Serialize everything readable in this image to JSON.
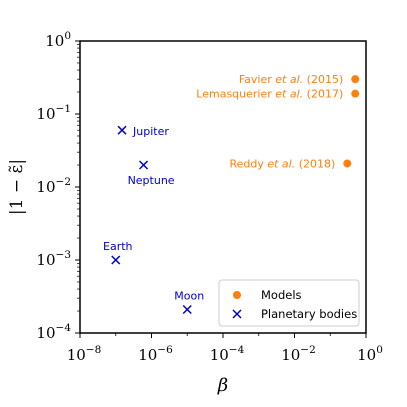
{
  "chart_data": {
    "type": "scatter",
    "xlabel": "β",
    "ylabel": "|1 − ε̃|",
    "xscale": "log",
    "yscale": "log",
    "xlim": [
      1e-08,
      1
    ],
    "ylim": [
      0.0001,
      1
    ],
    "grid": false,
    "legend_position": "bottom-right",
    "x_ticks": [
      {
        "value": 1e-08,
        "base": "10",
        "exp": "−8"
      },
      {
        "value": 1e-06,
        "base": "10",
        "exp": "−6"
      },
      {
        "value": 0.0001,
        "base": "10",
        "exp": "−4"
      },
      {
        "value": 0.01,
        "base": "10",
        "exp": "−2"
      },
      {
        "value": 1,
        "base": "10",
        "exp": "0"
      }
    ],
    "y_ticks": [
      {
        "value": 1,
        "base": "10",
        "exp": "0"
      },
      {
        "value": 0.1,
        "base": "10",
        "exp": "−1"
      },
      {
        "value": 0.01,
        "base": "10",
        "exp": "−2"
      },
      {
        "value": 0.001,
        "base": "10",
        "exp": "−3"
      },
      {
        "value": 0.0001,
        "base": "10",
        "exp": "−4"
      }
    ],
    "series": [
      {
        "name": "Models",
        "marker": "circle",
        "color": "#ff7f0e",
        "points": [
          {
            "x": 0.5,
            "y": 0.3,
            "label_parts": [
              "Favier ",
              "et al.",
              " (2015)"
            ],
            "label_anchor": "end"
          },
          {
            "x": 0.5,
            "y": 0.19,
            "label_parts": [
              "Lemasquerier ",
              "et al.",
              " (2017)"
            ],
            "label_anchor": "end"
          },
          {
            "x": 0.3,
            "y": 0.021,
            "label_parts": [
              "Reddy ",
              "et al.",
              " (2018)"
            ],
            "label_anchor": "end"
          }
        ]
      },
      {
        "name": "Planetary bodies",
        "marker": "x",
        "color": "#0000cc",
        "points": [
          {
            "x": 1.5e-07,
            "y": 0.06,
            "label_parts": [
              "Jupiter"
            ],
            "label_anchor": "start"
          },
          {
            "x": 6e-07,
            "y": 0.02,
            "label_parts": [
              "Neptune"
            ],
            "label_anchor": "start"
          },
          {
            "x": 1e-07,
            "y": 0.001,
            "label_parts": [
              "Earth"
            ],
            "label_anchor": "middle"
          },
          {
            "x": 1e-05,
            "y": 0.00021,
            "label_parts": [
              "Moon"
            ],
            "label_anchor": "middle"
          }
        ]
      }
    ]
  }
}
